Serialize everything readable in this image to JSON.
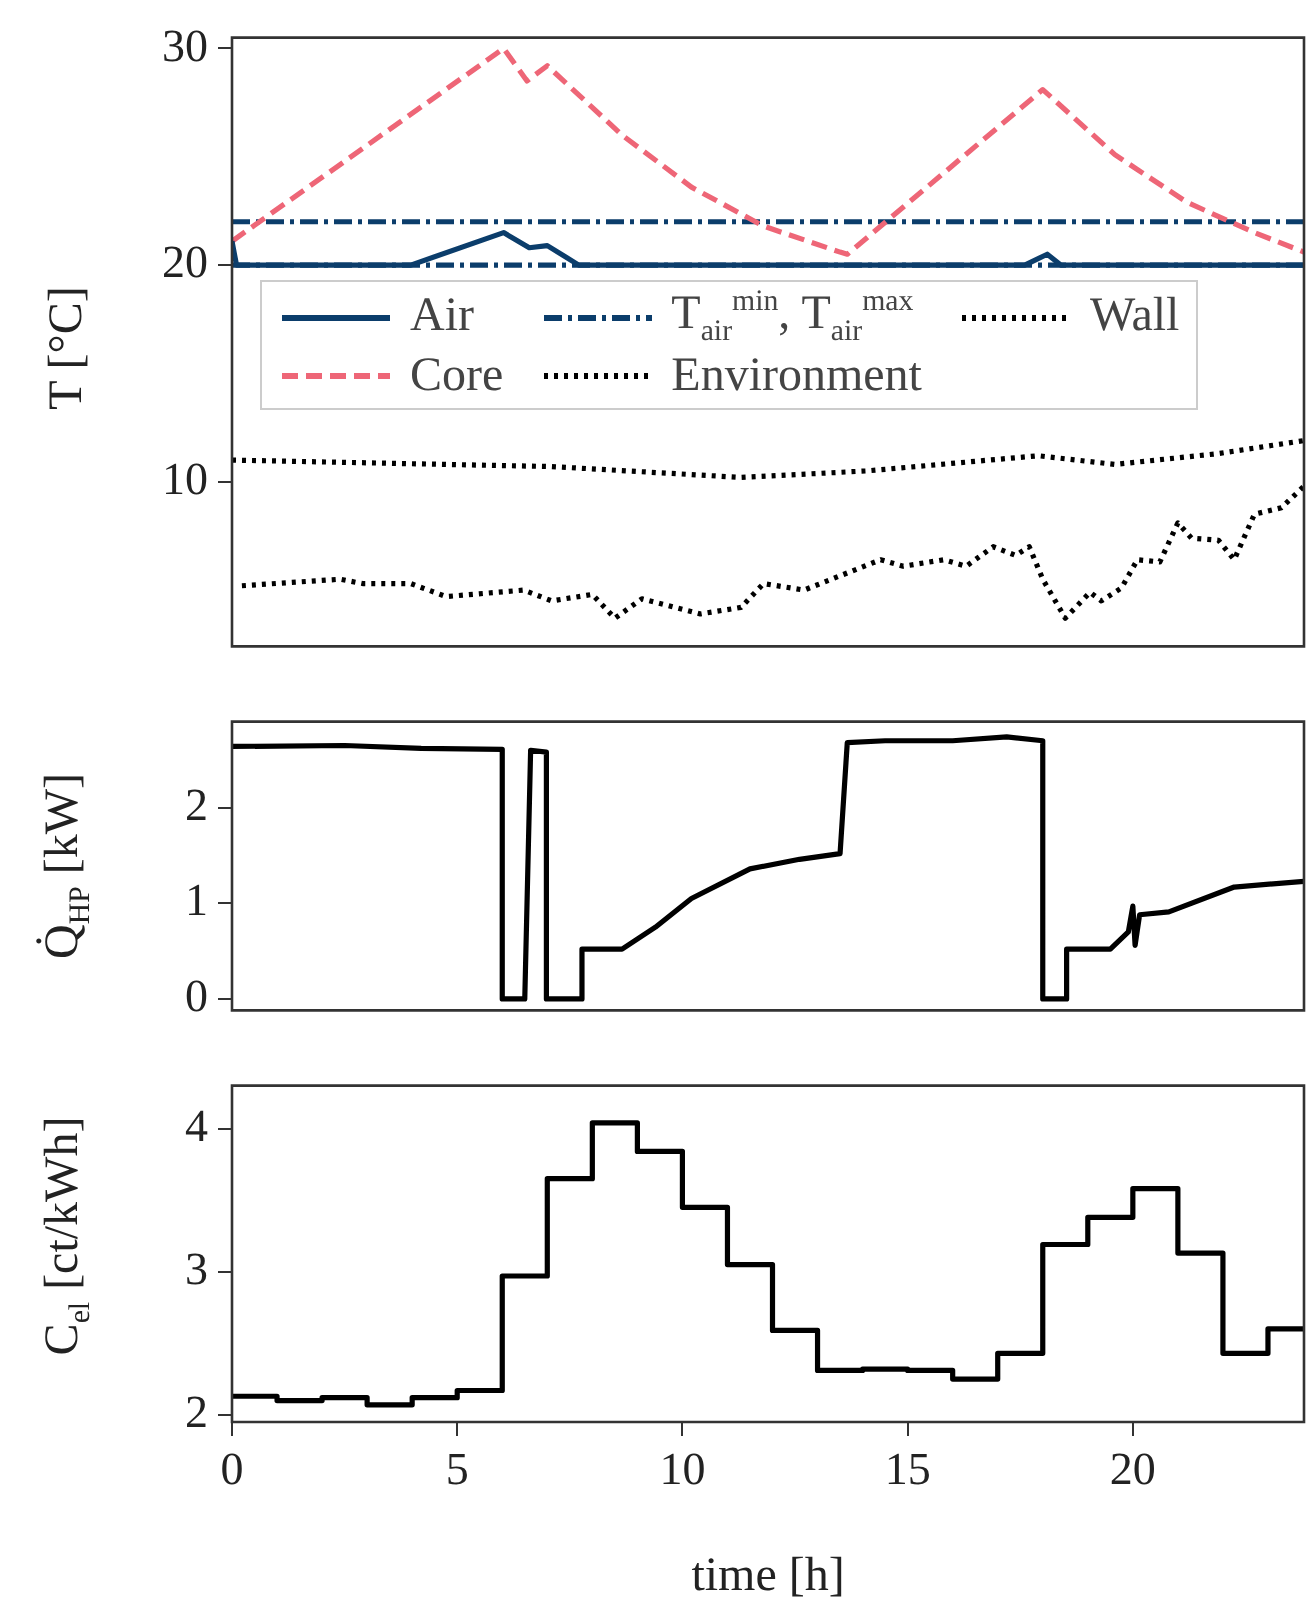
{
  "chart_data": [
    {
      "type": "line",
      "ylabel": "T [°C]",
      "xlim": [
        0,
        23.8
      ],
      "xticks": [
        0,
        5,
        10,
        15,
        20
      ],
      "ylim": [
        2.4,
        30.5
      ],
      "yticks": [
        10,
        20,
        30
      ],
      "tick_labels": "y",
      "grid": false,
      "legend": "top",
      "series": [
        {
          "name": "Air",
          "color": "#0b3d6b",
          "line_style": "solid",
          "x": [
            0,
            0.1,
            3.97,
            6.03,
            6.6,
            7.0,
            7.7,
            17.6,
            18.1,
            18.4,
            23.8
          ],
          "values": [
            21.1,
            20,
            20,
            21.5,
            20.8,
            20.9,
            20,
            20,
            20.5,
            20,
            20
          ]
        },
        {
          "name": "Core",
          "color": "#ee6677",
          "line_style": "dashed",
          "x": [
            0,
            6.03,
            6.55,
            7.0,
            8.66,
            10.2,
            11.8,
            13.5,
            13.66,
            18.0,
            19.6,
            21.2,
            22.7,
            23.8
          ],
          "values": [
            21.1,
            30,
            28.5,
            29.2,
            26.0,
            23.6,
            21.8,
            20.6,
            20.5,
            28.1,
            25.1,
            22.9,
            21.5,
            20.6
          ]
        },
        {
          "name": "T$_{air}$$^{min}$, T$_{air}$$^{max}$",
          "color": "#0b3d6b",
          "line_style": "dashdot",
          "x": [
            0,
            23.8
          ],
          "values": [
            20,
            20
          ]
        },
        {
          "name": "Environment",
          "color": "#000000",
          "line_style": "dotted",
          "x": [
            0.22,
            2.4,
            2.9,
            3.97,
            4.75,
            6.47,
            7.1,
            8.0,
            8.5,
            9.1,
            10.4,
            11.3,
            11.8,
            12.7,
            14.4,
            14.9,
            15.8,
            16.3,
            16.9,
            17.4,
            17.7,
            18.0,
            18.5,
            19.05,
            19.3,
            19.75,
            20.1,
            20.6,
            21.0,
            21.3,
            21.9,
            22.25,
            22.7,
            23.3,
            23.8
          ],
          "values": [
            5.2,
            5.5,
            5.3,
            5.3,
            4.7,
            5.0,
            4.5,
            4.8,
            3.7,
            4.6,
            3.9,
            4.2,
            5.3,
            5.0,
            6.4,
            6.1,
            6.4,
            6.1,
            7.0,
            6.6,
            7.0,
            5.5,
            3.7,
            4.9,
            4.5,
            5.1,
            6.4,
            6.3,
            8.1,
            7.4,
            7.3,
            6.4,
            8.5,
            8.8,
            9.8
          ]
        },
        {
          "name": "Wall",
          "color": "#000000",
          "line_style": "dotted",
          "x": [
            0,
            7.1,
            11.3,
            14.1,
            17.9,
            19.6,
            21.9,
            23.8
          ],
          "values": [
            11.0,
            10.7,
            10.2,
            10.5,
            11.2,
            10.8,
            11.3,
            11.9
          ]
        },
        {
          "color": "#0b3d6b",
          "line_style": "dashdot",
          "x": [
            0,
            23.8
          ],
          "values": [
            22,
            22
          ]
        }
      ]
    },
    {
      "type": "line",
      "ylabel": "Q̇$_{HP}$ [kW]",
      "xlim": [
        0,
        23.8
      ],
      "xticks": [
        0,
        5,
        10,
        15,
        20
      ],
      "ylim": [
        -0.12,
        2.9
      ],
      "yticks": [
        0,
        1,
        2
      ],
      "tick_labels": "y",
      "grid": false,
      "color": "#000000",
      "x": [
        0,
        2.5,
        4.2,
        6.0,
        6.0,
        6.5,
        6.63,
        6.98,
        6.98,
        7.77,
        7.77,
        8.66,
        9.4,
        10.2,
        11.5,
        12.6,
        13.5,
        13.66,
        14.5,
        16.0,
        17.2,
        18.0,
        18.0,
        18.53,
        18.53,
        19.5,
        19.9,
        20.0,
        20.05,
        20.15,
        20.8,
        22.25,
        23.8
      ],
      "values": [
        2.64,
        2.65,
        2.62,
        2.61,
        0,
        0,
        2.6,
        2.58,
        0,
        0,
        0.52,
        0.52,
        0.75,
        1.05,
        1.36,
        1.46,
        1.52,
        2.68,
        2.7,
        2.7,
        2.74,
        2.7,
        0,
        0,
        0.52,
        0.52,
        0.7,
        0.97,
        0.56,
        0.88,
        0.91,
        1.17,
        1.23
      ]
    },
    {
      "type": "step",
      "ylabel": "C$_{el}$ [ct/kWh]",
      "xlabel": "time [h]",
      "xlim": [
        0,
        23.8
      ],
      "xticks": [
        0,
        5,
        10,
        15,
        20
      ],
      "ylim": [
        1.95,
        4.3
      ],
      "yticks": [
        2,
        3,
        4
      ],
      "grid": false,
      "color": "#000000",
      "x": [
        0,
        1,
        2,
        3,
        4,
        5,
        6,
        7,
        8,
        9,
        10,
        11,
        12,
        13,
        14,
        15,
        16,
        17,
        18,
        19,
        20,
        21,
        22,
        23,
        23.8
      ],
      "values": [
        2.13,
        2.1,
        2.12,
        2.07,
        2.12,
        2.17,
        2.97,
        3.65,
        4.04,
        3.84,
        3.45,
        3.05,
        2.59,
        2.31,
        2.32,
        2.31,
        2.25,
        2.43,
        3.19,
        3.38,
        3.58,
        3.13,
        2.43,
        2.6,
        2.6
      ]
    }
  ]
}
